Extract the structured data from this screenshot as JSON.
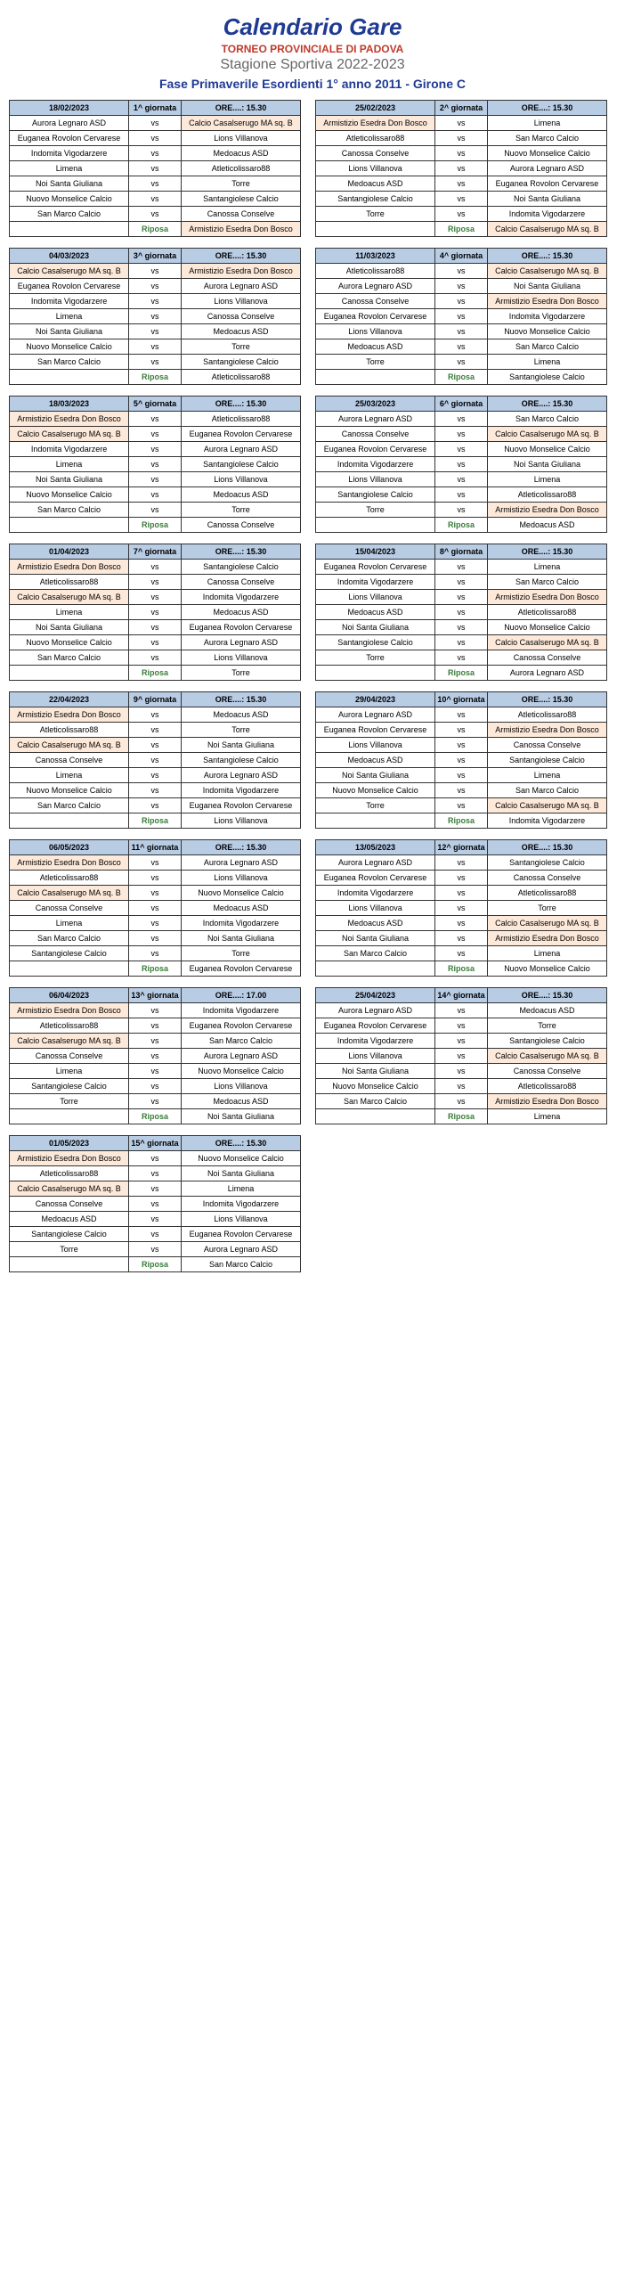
{
  "header": {
    "title": "Calendario Gare",
    "tournament": "TORNEO PROVINCIALE DI PADOVA",
    "season": "Stagione Sportiva 2022-2023",
    "phase": "Fase Primaverile Esordienti 1° anno 2011 - Girone C"
  },
  "time_label": "ORE....: 15.30",
  "riposa": "Riposa",
  "vs": "vs",
  "rounds": [
    {
      "date": "18/02/2023",
      "num": "1^ giornata",
      "time": "ORE....: 15.30",
      "matches": [
        [
          "Aurora Legnaro ASD",
          "Calcio Casalserugo MA sq. B",
          false,
          true
        ],
        [
          "Euganea Rovolon Cervarese",
          "Lions Villanova",
          false,
          false
        ],
        [
          "Indomita Vigodarzere",
          "Medoacus ASD",
          false,
          false
        ],
        [
          "Limena",
          "Atleticolissaro88",
          false,
          false
        ],
        [
          "Noi Santa Giuliana",
          "Torre",
          false,
          false
        ],
        [
          "Nuovo Monselice Calcio",
          "Santangiolese Calcio",
          false,
          false
        ],
        [
          "San Marco Calcio",
          "Canossa Conselve",
          false,
          false
        ]
      ],
      "rest": "Armistizio Esedra Don Bosco",
      "rest_hl": true
    },
    {
      "date": "25/02/2023",
      "num": "2^ giornata",
      "time": "ORE....: 15.30",
      "matches": [
        [
          "Armistizio Esedra Don Bosco",
          "Limena",
          true,
          false
        ],
        [
          "Atleticolissaro88",
          "San Marco Calcio",
          false,
          false
        ],
        [
          "Canossa Conselve",
          "Nuovo Monselice Calcio",
          false,
          false
        ],
        [
          "Lions Villanova",
          "Aurora Legnaro ASD",
          false,
          false
        ],
        [
          "Medoacus ASD",
          "Euganea Rovolon Cervarese",
          false,
          false
        ],
        [
          "Santangiolese Calcio",
          "Noi Santa Giuliana",
          false,
          false
        ],
        [
          "Torre",
          "Indomita Vigodarzere",
          false,
          false
        ]
      ],
      "rest": "Calcio Casalserugo MA sq. B",
      "rest_hl": true
    },
    {
      "date": "04/03/2023",
      "num": "3^ giornata",
      "time": "ORE....: 15.30",
      "matches": [
        [
          "Calcio Casalserugo MA sq. B",
          "Armistizio Esedra Don Bosco",
          true,
          true
        ],
        [
          "Euganea Rovolon Cervarese",
          "Aurora Legnaro ASD",
          false,
          false
        ],
        [
          "Indomita Vigodarzere",
          "Lions Villanova",
          false,
          false
        ],
        [
          "Limena",
          "Canossa Conselve",
          false,
          false
        ],
        [
          "Noi Santa Giuliana",
          "Medoacus ASD",
          false,
          false
        ],
        [
          "Nuovo Monselice Calcio",
          "Torre",
          false,
          false
        ],
        [
          "San Marco Calcio",
          "Santangiolese Calcio",
          false,
          false
        ]
      ],
      "rest": "Atleticolissaro88",
      "rest_hl": false
    },
    {
      "date": "11/03/2023",
      "num": "4^ giornata",
      "time": "ORE....: 15.30",
      "matches": [
        [
          "Atleticolissaro88",
          "Calcio Casalserugo MA sq. B",
          false,
          true
        ],
        [
          "Aurora Legnaro ASD",
          "Noi Santa Giuliana",
          false,
          false
        ],
        [
          "Canossa Conselve",
          "Armistizio Esedra Don Bosco",
          false,
          true
        ],
        [
          "Euganea Rovolon Cervarese",
          "Indomita Vigodarzere",
          false,
          false
        ],
        [
          "Lions Villanova",
          "Nuovo Monselice Calcio",
          false,
          false
        ],
        [
          "Medoacus ASD",
          "San Marco Calcio",
          false,
          false
        ],
        [
          "Torre",
          "Limena",
          false,
          false
        ]
      ],
      "rest": "Santangiolese Calcio",
      "rest_hl": false
    },
    {
      "date": "18/03/2023",
      "num": "5^ giornata",
      "time": "ORE....: 15.30",
      "matches": [
        [
          "Armistizio Esedra Don Bosco",
          "Atleticolissaro88",
          true,
          false
        ],
        [
          "Calcio Casalserugo MA sq. B",
          "Euganea Rovolon Cervarese",
          true,
          false
        ],
        [
          "Indomita Vigodarzere",
          "Aurora Legnaro ASD",
          false,
          false
        ],
        [
          "Limena",
          "Santangiolese Calcio",
          false,
          false
        ],
        [
          "Noi Santa Giuliana",
          "Lions Villanova",
          false,
          false
        ],
        [
          "Nuovo Monselice Calcio",
          "Medoacus ASD",
          false,
          false
        ],
        [
          "San Marco Calcio",
          "Torre",
          false,
          false
        ]
      ],
      "rest": "Canossa Conselve",
      "rest_hl": false
    },
    {
      "date": "25/03/2023",
      "num": "6^ giornata",
      "time": "ORE....: 15.30",
      "matches": [
        [
          "Aurora Legnaro ASD",
          "San Marco Calcio",
          false,
          false
        ],
        [
          "Canossa Conselve",
          "Calcio Casalserugo MA sq. B",
          false,
          true
        ],
        [
          "Euganea Rovolon Cervarese",
          "Nuovo Monselice Calcio",
          false,
          false
        ],
        [
          "Indomita Vigodarzere",
          "Noi Santa Giuliana",
          false,
          false
        ],
        [
          "Lions Villanova",
          "Limena",
          false,
          false
        ],
        [
          "Santangiolese Calcio",
          "Atleticolissaro88",
          false,
          false
        ],
        [
          "Torre",
          "Armistizio Esedra Don Bosco",
          false,
          true
        ]
      ],
      "rest": "Medoacus ASD",
      "rest_hl": false
    },
    {
      "date": "01/04/2023",
      "num": "7^ giornata",
      "time": "ORE....: 15.30",
      "matches": [
        [
          "Armistizio Esedra Don Bosco",
          "Santangiolese Calcio",
          true,
          false
        ],
        [
          "Atleticolissaro88",
          "Canossa Conselve",
          false,
          false
        ],
        [
          "Calcio Casalserugo MA sq. B",
          "Indomita Vigodarzere",
          true,
          false
        ],
        [
          "Limena",
          "Medoacus ASD",
          false,
          false
        ],
        [
          "Noi Santa Giuliana",
          "Euganea Rovolon Cervarese",
          false,
          false
        ],
        [
          "Nuovo Monselice Calcio",
          "Aurora Legnaro ASD",
          false,
          false
        ],
        [
          "San Marco Calcio",
          "Lions Villanova",
          false,
          false
        ]
      ],
      "rest": "Torre",
      "rest_hl": false
    },
    {
      "date": "15/04/2023",
      "num": "8^ giornata",
      "time": "ORE....: 15.30",
      "matches": [
        [
          "Euganea Rovolon Cervarese",
          "Limena",
          false,
          false
        ],
        [
          "Indomita Vigodarzere",
          "San Marco Calcio",
          false,
          false
        ],
        [
          "Lions Villanova",
          "Armistizio Esedra Don Bosco",
          false,
          true
        ],
        [
          "Medoacus ASD",
          "Atleticolissaro88",
          false,
          false
        ],
        [
          "Noi Santa Giuliana",
          "Nuovo Monselice Calcio",
          false,
          false
        ],
        [
          "Santangiolese Calcio",
          "Calcio Casalserugo MA sq. B",
          false,
          true
        ],
        [
          "Torre",
          "Canossa Conselve",
          false,
          false
        ]
      ],
      "rest": "Aurora Legnaro ASD",
      "rest_hl": false
    },
    {
      "date": "22/04/2023",
      "num": "9^ giornata",
      "time": "ORE....: 15.30",
      "matches": [
        [
          "Armistizio Esedra Don Bosco",
          "Medoacus ASD",
          true,
          false
        ],
        [
          "Atleticolissaro88",
          "Torre",
          false,
          false
        ],
        [
          "Calcio Casalserugo MA sq. B",
          "Noi Santa Giuliana",
          true,
          false
        ],
        [
          "Canossa Conselve",
          "Santangiolese Calcio",
          false,
          false
        ],
        [
          "Limena",
          "Aurora Legnaro ASD",
          false,
          false
        ],
        [
          "Nuovo Monselice Calcio",
          "Indomita Vigodarzere",
          false,
          false
        ],
        [
          "San Marco Calcio",
          "Euganea Rovolon Cervarese",
          false,
          false
        ]
      ],
      "rest": "Lions Villanova",
      "rest_hl": false
    },
    {
      "date": "29/04/2023",
      "num": "10^ giornata",
      "time": "ORE....: 15.30",
      "matches": [
        [
          "Aurora Legnaro ASD",
          "Atleticolissaro88",
          false,
          false
        ],
        [
          "Euganea Rovolon Cervarese",
          "Armistizio Esedra Don Bosco",
          false,
          true
        ],
        [
          "Lions Villanova",
          "Canossa Conselve",
          false,
          false
        ],
        [
          "Medoacus ASD",
          "Santangiolese Calcio",
          false,
          false
        ],
        [
          "Noi Santa Giuliana",
          "Limena",
          false,
          false
        ],
        [
          "Nuovo Monselice Calcio",
          "San Marco Calcio",
          false,
          false
        ],
        [
          "Torre",
          "Calcio Casalserugo MA sq. B",
          false,
          true
        ]
      ],
      "rest": "Indomita Vigodarzere",
      "rest_hl": false
    },
    {
      "date": "06/05/2023",
      "num": "11^ giornata",
      "time": "ORE....: 15.30",
      "matches": [
        [
          "Armistizio Esedra Don Bosco",
          "Aurora Legnaro ASD",
          true,
          false
        ],
        [
          "Atleticolissaro88",
          "Lions Villanova",
          false,
          false
        ],
        [
          "Calcio Casalserugo MA sq. B",
          "Nuovo Monselice Calcio",
          true,
          false
        ],
        [
          "Canossa Conselve",
          "Medoacus ASD",
          false,
          false
        ],
        [
          "Limena",
          "Indomita Vigodarzere",
          false,
          false
        ],
        [
          "San Marco Calcio",
          "Noi Santa Giuliana",
          false,
          false
        ],
        [
          "Santangiolese Calcio",
          "Torre",
          false,
          false
        ]
      ],
      "rest": "Euganea Rovolon Cervarese",
      "rest_hl": false
    },
    {
      "date": "13/05/2023",
      "num": "12^ giornata",
      "time": "ORE....: 15.30",
      "matches": [
        [
          "Aurora Legnaro ASD",
          "Santangiolese Calcio",
          false,
          false
        ],
        [
          "Euganea Rovolon Cervarese",
          "Canossa Conselve",
          false,
          false
        ],
        [
          "Indomita Vigodarzere",
          "Atleticolissaro88",
          false,
          false
        ],
        [
          "Lions Villanova",
          "Torre",
          false,
          false
        ],
        [
          "Medoacus ASD",
          "Calcio Casalserugo MA sq. B",
          false,
          true
        ],
        [
          "Noi Santa Giuliana",
          "Armistizio Esedra Don Bosco",
          false,
          true
        ],
        [
          "San Marco Calcio",
          "Limena",
          false,
          false
        ]
      ],
      "rest": "Nuovo Monselice Calcio",
      "rest_hl": false
    },
    {
      "date": "06/04/2023",
      "num": "13^ giornata",
      "time": "ORE....: 17.00",
      "matches": [
        [
          "Armistizio Esedra Don Bosco",
          "Indomita Vigodarzere",
          true,
          false
        ],
        [
          "Atleticolissaro88",
          "Euganea Rovolon Cervarese",
          false,
          false
        ],
        [
          "Calcio Casalserugo MA sq. B",
          "San Marco Calcio",
          true,
          false
        ],
        [
          "Canossa Conselve",
          "Aurora Legnaro ASD",
          false,
          false
        ],
        [
          "Limena",
          "Nuovo Monselice Calcio",
          false,
          false
        ],
        [
          "Santangiolese Calcio",
          "Lions Villanova",
          false,
          false
        ],
        [
          "Torre",
          "Medoacus ASD",
          false,
          false
        ]
      ],
      "rest": "Noi Santa Giuliana",
      "rest_hl": false
    },
    {
      "date": "25/04/2023",
      "num": "14^ giornata",
      "time": "ORE....: 15.30",
      "matches": [
        [
          "Aurora Legnaro ASD",
          "Medoacus ASD",
          false,
          false
        ],
        [
          "Euganea Rovolon Cervarese",
          "Torre",
          false,
          false
        ],
        [
          "Indomita Vigodarzere",
          "Santangiolese Calcio",
          false,
          false
        ],
        [
          "Lions Villanova",
          "Calcio Casalserugo MA sq. B",
          false,
          true
        ],
        [
          "Noi Santa Giuliana",
          "Canossa Conselve",
          false,
          false
        ],
        [
          "Nuovo Monselice Calcio",
          "Atleticolissaro88",
          false,
          false
        ],
        [
          "San Marco Calcio",
          "Armistizio Esedra Don Bosco",
          false,
          true
        ]
      ],
      "rest": "Limena",
      "rest_hl": false
    },
    {
      "date": "01/05/2023",
      "num": "15^ giornata",
      "time": "ORE....: 15.30",
      "matches": [
        [
          "Armistizio Esedra Don Bosco",
          "Nuovo Monselice Calcio",
          true,
          false
        ],
        [
          "Atleticolissaro88",
          "Noi Santa Giuliana",
          false,
          false
        ],
        [
          "Calcio Casalserugo MA sq. B",
          "Limena",
          true,
          false
        ],
        [
          "Canossa Conselve",
          "Indomita Vigodarzere",
          false,
          false
        ],
        [
          "Medoacus ASD",
          "Lions Villanova",
          false,
          false
        ],
        [
          "Santangiolese Calcio",
          "Euganea Rovolon Cervarese",
          false,
          false
        ],
        [
          "Torre",
          "Aurora Legnaro ASD",
          false,
          false
        ]
      ],
      "rest": "San Marco Calcio",
      "rest_hl": false
    }
  ]
}
